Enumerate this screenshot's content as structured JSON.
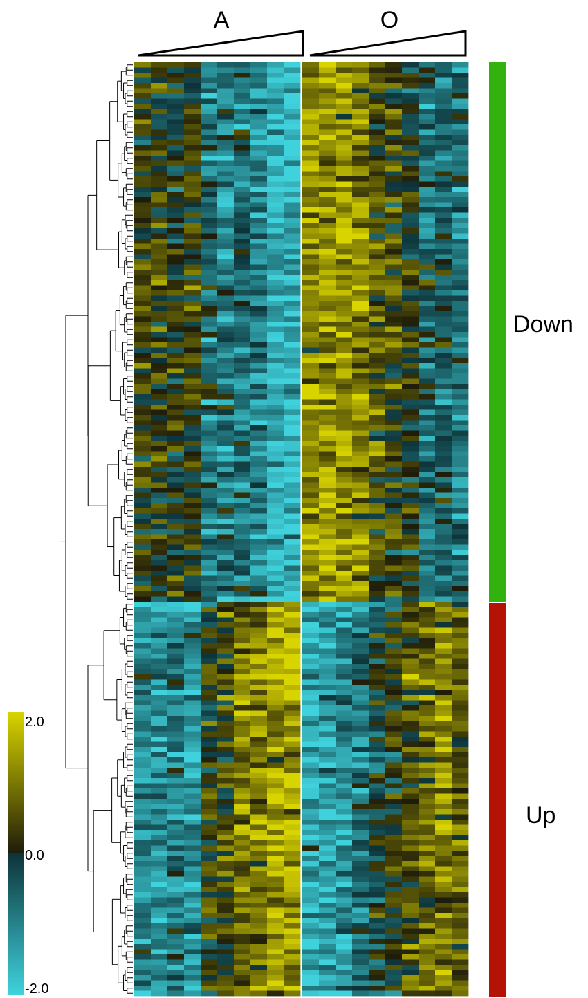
{
  "chart_data": {
    "type": "heatmap",
    "group_labels": [
      "A",
      "O"
    ],
    "cluster_labels": [
      "Down",
      "Up"
    ],
    "cluster_colors": {
      "Down": "#33b10e",
      "Up": "#b31204"
    },
    "colorscale": {
      "min_label": "-2.0",
      "mid_label": "0.0",
      "max_label": "2.0",
      "range": [
        -2.0,
        0.0,
        2.0
      ],
      "colors": [
        "#3fd2dc",
        "#0d3338",
        "#1e1c0a",
        "#d8d400"
      ]
    },
    "n_columns": 20,
    "columns_per_group": 10,
    "n_rows": 180,
    "rows_per_cluster": {
      "Down": 104,
      "Up": 76
    },
    "column_profiles": {
      "Down": [
        0.2,
        0.25,
        0.1,
        0.25,
        -0.8,
        -0.9,
        -0.6,
        -1.0,
        -1.7,
        -1.7,
        1.2,
        1.4,
        1.3,
        1.1,
        0.6,
        0.3,
        0.0,
        -0.6,
        -0.5,
        -0.7
      ],
      "Up": [
        -1.0,
        -1.1,
        -0.9,
        -1.3,
        0.3,
        0.5,
        0.9,
        1.0,
        1.4,
        1.5,
        -1.5,
        -1.4,
        -1.2,
        -0.8,
        -0.2,
        0.1,
        0.5,
        0.9,
        1.0,
        0.7
      ]
    },
    "dendrogram": {
      "side": "left",
      "clusters": 2
    }
  }
}
